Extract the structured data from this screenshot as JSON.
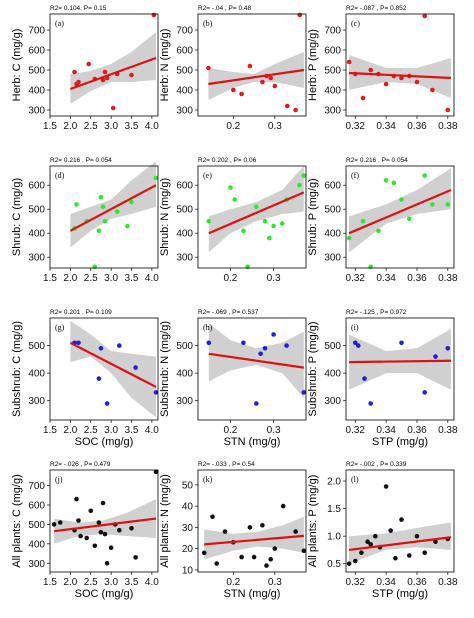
{
  "chart_data": [
    {
      "type": "scatter",
      "panel": "(a)",
      "stats": "R2= 0.104, P= 0.15",
      "ylabel": "Herb: C (mg/g)",
      "xlabel": "",
      "color": "#e31a1c",
      "xlim": [
        1.5,
        4.15
      ],
      "ylim": [
        270,
        780
      ],
      "xticks": [
        "1.5",
        "2.0",
        "2.5",
        "3.0",
        "3.5",
        "4.0"
      ],
      "yticks": [
        "300",
        "400",
        "500",
        "600",
        "700"
      ],
      "x": [
        2.1,
        2.15,
        2.2,
        2.45,
        2.6,
        2.8,
        2.85,
        2.9,
        3.05,
        3.15,
        3.5,
        4.05
      ],
      "y": [
        490,
        430,
        440,
        530,
        455,
        450,
        490,
        460,
        310,
        480,
        475,
        775
      ],
      "fit": [
        [
          2.0,
          405
        ],
        [
          4.1,
          560
        ]
      ],
      "band": [
        [
          2.0,
          330,
          480
        ],
        [
          2.5,
          395,
          495
        ],
        [
          3.0,
          440,
          530
        ],
        [
          3.5,
          440,
          590
        ],
        [
          4.1,
          450,
          690
        ]
      ]
    },
    {
      "type": "scatter",
      "panel": "(b)",
      "stats": "R2= -.04 , P= 0.48",
      "ylabel": "Herb: N (mg/g)",
      "xlabel": "",
      "color": "#e31a1c",
      "xlim": [
        0.115,
        0.375
      ],
      "ylim": [
        270,
        780
      ],
      "xticks": [
        "0.1",
        "0.2",
        "0.3"
      ],
      "yticks": [
        "300",
        "400",
        "500",
        "600",
        "700"
      ],
      "x": [
        0.14,
        0.2,
        0.22,
        0.24,
        0.27,
        0.28,
        0.29,
        0.3,
        0.33,
        0.35,
        0.36
      ],
      "y": [
        510,
        400,
        380,
        520,
        440,
        470,
        460,
        420,
        320,
        300,
        775
      ],
      "fit": [
        [
          0.14,
          430
        ],
        [
          0.37,
          500
        ]
      ],
      "band": [
        [
          0.14,
          350,
          510
        ],
        [
          0.2,
          410,
          490
        ],
        [
          0.25,
          440,
          480
        ],
        [
          0.3,
          440,
          530
        ],
        [
          0.37,
          410,
          590
        ]
      ]
    },
    {
      "type": "scatter",
      "panel": "(c)",
      "stats": "R2= -.087 , P= 0.852",
      "ylabel": "Herb: P (mg/g)",
      "xlabel": "",
      "color": "#e31a1c",
      "xlim": [
        0.314,
        0.384
      ],
      "ylim": [
        270,
        780
      ],
      "xticks": [
        "0.32",
        "0.34",
        "0.36",
        "0.38"
      ],
      "yticks": [
        "300",
        "400",
        "500",
        "600",
        "700"
      ],
      "x": [
        0.316,
        0.32,
        0.325,
        0.33,
        0.335,
        0.34,
        0.345,
        0.35,
        0.355,
        0.36,
        0.365,
        0.37,
        0.38
      ],
      "y": [
        540,
        480,
        360,
        500,
        480,
        430,
        470,
        460,
        470,
        440,
        770,
        400,
        300
      ],
      "fit": [
        [
          0.316,
          485
        ],
        [
          0.382,
          460
        ]
      ],
      "band": [
        [
          0.316,
          400,
          575
        ],
        [
          0.34,
          440,
          510
        ],
        [
          0.36,
          430,
          510
        ],
        [
          0.382,
          360,
          560
        ]
      ]
    },
    {
      "type": "scatter",
      "panel": "(d)",
      "stats": "R2= 0.216 , P= 0.054",
      "ylabel": "Shrub: C (mg/g)",
      "xlabel": "",
      "color": "#2ee82e",
      "xlim": [
        1.5,
        4.15
      ],
      "ylim": [
        255,
        680
      ],
      "xticks": [
        "1.5",
        "2.0",
        "2.5",
        "3.0",
        "3.5",
        "4.0"
      ],
      "yticks": [
        "300",
        "400",
        "500",
        "600"
      ],
      "x": [
        2.1,
        2.15,
        2.4,
        2.6,
        2.7,
        2.75,
        2.8,
        2.85,
        3.15,
        3.4,
        3.5,
        4.1
      ],
      "y": [
        420,
        520,
        450,
        260,
        410,
        550,
        510,
        450,
        490,
        430,
        530,
        630
      ],
      "fit": [
        [
          2.0,
          410
        ],
        [
          4.1,
          600
        ]
      ],
      "band": [
        [
          2.0,
          340,
          480
        ],
        [
          2.5,
          410,
          510
        ],
        [
          3.0,
          460,
          540
        ],
        [
          3.5,
          480,
          620
        ],
        [
          4.1,
          510,
          700
        ]
      ]
    },
    {
      "type": "scatter",
      "panel": "(e)",
      "stats": "R2= 0.202 , P= 0.06",
      "ylabel": "Shrub: N (mg/g)",
      "xlabel": "",
      "color": "#2ee82e",
      "xlim": [
        0.125,
        0.375
      ],
      "ylim": [
        255,
        680
      ],
      "xticks": [
        "0.2",
        "0.3"
      ],
      "yticks": [
        "300",
        "400",
        "500",
        "600"
      ],
      "x": [
        0.15,
        0.2,
        0.21,
        0.23,
        0.24,
        0.26,
        0.28,
        0.29,
        0.3,
        0.32,
        0.33,
        0.36,
        0.37
      ],
      "y": [
        450,
        590,
        540,
        410,
        260,
        510,
        450,
        380,
        430,
        440,
        540,
        600,
        640
      ],
      "fit": [
        [
          0.15,
          400
        ],
        [
          0.37,
          570
        ]
      ],
      "band": [
        [
          0.15,
          320,
          470
        ],
        [
          0.2,
          400,
          500
        ],
        [
          0.26,
          450,
          530
        ],
        [
          0.32,
          480,
          580
        ],
        [
          0.37,
          490,
          680
        ]
      ]
    },
    {
      "type": "scatter",
      "panel": "(f)",
      "stats": "R2= 0.216 , P= 0.054",
      "ylabel": "Shrub: P (mg/g)",
      "xlabel": "",
      "color": "#2ee82e",
      "xlim": [
        0.314,
        0.384
      ],
      "ylim": [
        255,
        680
      ],
      "xticks": [
        "0.32",
        "0.34",
        "0.36",
        "0.38"
      ],
      "yticks": [
        "300",
        "400",
        "500",
        "600"
      ],
      "x": [
        0.316,
        0.325,
        0.33,
        0.335,
        0.34,
        0.345,
        0.35,
        0.355,
        0.365,
        0.37,
        0.38
      ],
      "y": [
        380,
        450,
        260,
        410,
        620,
        610,
        540,
        460,
        640,
        520,
        520
      ],
      "fit": [
        [
          0.316,
          400
        ],
        [
          0.382,
          580
        ]
      ],
      "band": [
        [
          0.316,
          320,
          470
        ],
        [
          0.34,
          440,
          520
        ],
        [
          0.36,
          480,
          580
        ],
        [
          0.382,
          500,
          670
        ]
      ]
    },
    {
      "type": "scatter",
      "panel": "(g)",
      "stats": "R2= 0.201 , P= 0.109",
      "ylabel": "Subshrub: C (mg/g)",
      "xlabel": "SOC (mg/g)",
      "color": "#1f1fdc",
      "xlim": [
        1.5,
        4.15
      ],
      "ylim": [
        230,
        600
      ],
      "xticks": [
        "1.5",
        "2.0",
        "2.5",
        "3.0",
        "3.5",
        "4.0"
      ],
      "yticks": [
        "300",
        "400",
        "500"
      ],
      "x": [
        2.1,
        2.2,
        2.7,
        2.75,
        2.9,
        3.2,
        3.6,
        4.1
      ],
      "y": [
        510,
        510,
        380,
        490,
        290,
        500,
        420,
        330
      ],
      "fit": [
        [
          2.0,
          510
        ],
        [
          4.1,
          350
        ]
      ],
      "band": [
        [
          2.0,
          440,
          590
        ],
        [
          2.5,
          460,
          540
        ],
        [
          3.0,
          400,
          480
        ],
        [
          3.5,
          310,
          470
        ],
        [
          4.1,
          240,
          460
        ]
      ]
    },
    {
      "type": "scatter",
      "panel": "(h)",
      "stats": "R2= -.069 , P= 0.537",
      "ylabel": "Subshrub: N (mg/g)",
      "xlabel": "STN (mg/g)",
      "color": "#1f1fdc",
      "xlim": [
        0.125,
        0.375
      ],
      "ylim": [
        230,
        600
      ],
      "xticks": [
        "0.2",
        "0.3"
      ],
      "yticks": [
        "300",
        "400",
        "500"
      ],
      "x": [
        0.15,
        0.23,
        0.26,
        0.27,
        0.28,
        0.3,
        0.33,
        0.37
      ],
      "y": [
        510,
        510,
        290,
        470,
        490,
        540,
        500,
        330
      ],
      "fit": [
        [
          0.15,
          470
        ],
        [
          0.37,
          420
        ]
      ],
      "band": [
        [
          0.15,
          370,
          580
        ],
        [
          0.2,
          410,
          520
        ],
        [
          0.26,
          430,
          490
        ],
        [
          0.32,
          400,
          510
        ],
        [
          0.37,
          310,
          550
        ]
      ]
    },
    {
      "type": "scatter",
      "panel": "(i)",
      "stats": "R2= -.125 , P= 0.972",
      "ylabel": "Subshrub: P (mg/g)",
      "xlabel": "STP (mg/g)",
      "color": "#1f1fdc",
      "xlim": [
        0.314,
        0.384
      ],
      "ylim": [
        230,
        600
      ],
      "xticks": [
        "0.32",
        "0.34",
        "0.36",
        "0.38"
      ],
      "yticks": [
        "300",
        "400",
        "500"
      ],
      "x": [
        0.32,
        0.322,
        0.326,
        0.33,
        0.35,
        0.365,
        0.372,
        0.38
      ],
      "y": [
        510,
        500,
        380,
        290,
        510,
        330,
        460,
        490
      ],
      "fit": [
        [
          0.316,
          440
        ],
        [
          0.382,
          445
        ]
      ],
      "band": [
        [
          0.316,
          340,
          540
        ],
        [
          0.34,
          400,
          480
        ],
        [
          0.36,
          400,
          490
        ],
        [
          0.382,
          340,
          560
        ]
      ]
    },
    {
      "type": "scatter",
      "panel": "(j)",
      "stats": "R2= -.026 , P= 0.479",
      "ylabel": "All plants: C (mg/g)",
      "xlabel": "SOC (mg/g)",
      "color": "#111111",
      "xlim": [
        1.5,
        4.15
      ],
      "ylim": [
        255,
        780
      ],
      "xticks": [
        "1.5",
        "2.0",
        "2.5",
        "3.0",
        "3.5",
        "4.0"
      ],
      "yticks": [
        "300",
        "400",
        "500",
        "600",
        "700"
      ],
      "x": [
        1.6,
        1.75,
        2.1,
        2.15,
        2.2,
        2.25,
        2.4,
        2.5,
        2.6,
        2.7,
        2.75,
        2.8,
        2.85,
        2.9,
        3.0,
        3.1,
        3.2,
        3.5,
        3.6,
        4.1
      ],
      "y": [
        500,
        510,
        470,
        630,
        520,
        440,
        430,
        570,
        390,
        510,
        460,
        610,
        450,
        300,
        380,
        500,
        470,
        480,
        330,
        770
      ],
      "fit": [
        [
          1.6,
          465
        ],
        [
          4.1,
          530
        ]
      ],
      "band": [
        [
          1.6,
          400,
          530
        ],
        [
          2.2,
          440,
          510
        ],
        [
          2.8,
          450,
          520
        ],
        [
          3.4,
          440,
          560
        ],
        [
          4.1,
          430,
          630
        ]
      ]
    },
    {
      "type": "scatter",
      "panel": "(k)",
      "stats": "R2= -.033 , P= 0.54",
      "ylabel": "All plants: N (mg/g)",
      "xlabel": "STN (mg/g)",
      "color": "#111111",
      "xlim": [
        0.115,
        0.375
      ],
      "ylim": [
        9,
        57
      ],
      "xticks": [
        "0.1",
        "0.2",
        "0.3"
      ],
      "yticks": [
        "10",
        "20",
        "30",
        "40",
        "50"
      ],
      "x": [
        0.13,
        0.15,
        0.16,
        0.18,
        0.2,
        0.22,
        0.24,
        0.25,
        0.27,
        0.28,
        0.29,
        0.3,
        0.32,
        0.35,
        0.37
      ],
      "y": [
        18,
        35,
        13,
        28,
        23,
        16,
        30,
        16,
        31,
        12,
        15,
        20,
        40,
        28,
        19
      ],
      "fit": [
        [
          0.13,
          22
        ],
        [
          0.37,
          26
        ]
      ],
      "band": [
        [
          0.13,
          15,
          29
        ],
        [
          0.2,
          19,
          27
        ],
        [
          0.26,
          21,
          28
        ],
        [
          0.32,
          20,
          31
        ],
        [
          0.37,
          18,
          35
        ]
      ]
    },
    {
      "type": "scatter",
      "panel": "(l)",
      "stats": "R2= -.002 , P= 0.339",
      "ylabel": "All plants: P (mg/g)",
      "xlabel": "STP (mg/g)",
      "color": "#111111",
      "xlim": [
        0.314,
        0.384
      ],
      "ylim": [
        0.35,
        2.2
      ],
      "xticks": [
        "0.32",
        "0.34",
        "0.36",
        "0.38"
      ],
      "yticks": [
        "0.5",
        "1.0",
        "1.5",
        "2.0"
      ],
      "x": [
        0.316,
        0.32,
        0.324,
        0.328,
        0.33,
        0.333,
        0.336,
        0.34,
        0.343,
        0.346,
        0.35,
        0.355,
        0.36,
        0.365,
        0.372,
        0.38
      ],
      "y": [
        0.5,
        0.55,
        0.7,
        0.9,
        0.85,
        1.0,
        0.8,
        1.9,
        1.1,
        0.6,
        1.3,
        0.65,
        1.0,
        0.7,
        0.9,
        0.95
      ],
      "fit": [
        [
          0.316,
          0.75
        ],
        [
          0.382,
          0.98
        ]
      ],
      "band": [
        [
          0.316,
          0.5,
          1.0
        ],
        [
          0.34,
          0.75,
          1.05
        ],
        [
          0.36,
          0.8,
          1.15
        ],
        [
          0.382,
          0.75,
          1.25
        ]
      ]
    }
  ]
}
